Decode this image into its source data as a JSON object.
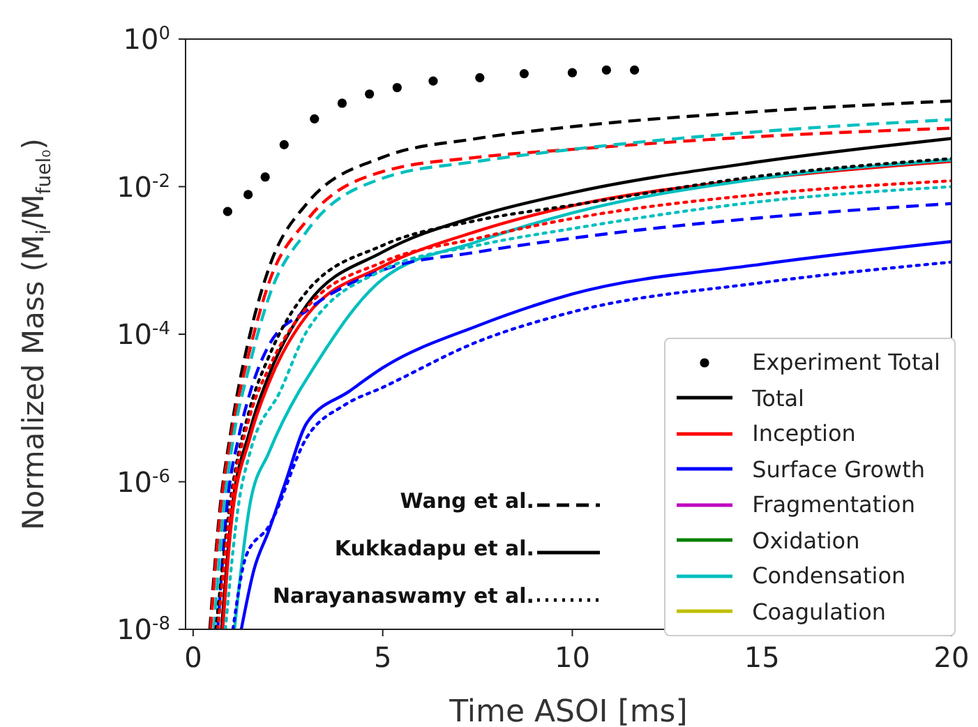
{
  "chart_data": {
    "type": "line",
    "xlabel": "Time ASOI [ms]",
    "ylabel": "Normalized Mass (M$_{i}$/M$_{fuel₀}$)",
    "log": "y",
    "grid": false,
    "legend": "bottom right",
    "xlim": [
      -0.2,
      20
    ],
    "xticks": [
      0,
      5,
      10,
      15,
      20
    ],
    "ylim": [
      1e-08,
      1
    ],
    "yticks": [
      {
        "value": 1e-08,
        "label": "10$^{-8}$"
      },
      {
        "value": 1e-06,
        "label": "10$^{-6}$"
      },
      {
        "value": 0.0001,
        "label": "10$^{-4}$"
      },
      {
        "value": 0.01,
        "label": "10$^{-2}$"
      },
      {
        "value": 1,
        "label": "10$^{0}$"
      }
    ],
    "annotations": [
      "Wang et al.",
      "Kukkadapu et al.",
      "Narayanaswamy et al."
    ],
    "series": [
      {
        "name": "Experiment Total",
        "type": "scatter",
        "marker": "circle",
        "color": "#000000",
        "x": [
          0.91,
          1.45,
          1.9,
          2.4,
          3.2,
          3.93,
          4.65,
          5.38,
          6.33,
          7.56,
          8.73,
          10.0,
          10.9,
          11.64
        ],
        "values": [
          0.0046,
          0.0078,
          0.0135,
          0.037,
          0.083,
          0.135,
          0.18,
          0.22,
          0.27,
          0.3,
          0.34,
          0.35,
          0.38,
          0.38
        ]
      },
      {
        "name": "Total",
        "color": "#000000",
        "line_style": "solid",
        "x": [
          0.75,
          1,
          1.5,
          2,
          3,
          5,
          7.5,
          10,
          15,
          20
        ],
        "values": [
          1e-08,
          3.2e-07,
          5e-06,
          2.8e-05,
          0.00025,
          0.0013,
          0.004,
          0.0083,
          0.022,
          0.045
        ]
      },
      {
        "name": "Inception",
        "color": "#ff0000",
        "line_style": "solid",
        "x": [
          0.78,
          1,
          1.5,
          2,
          3,
          5,
          7.5,
          10,
          15,
          20
        ],
        "values": [
          1e-08,
          2.5e-07,
          4e-06,
          2.2e-05,
          0.00018,
          0.00083,
          0.0025,
          0.0055,
          0.013,
          0.022
        ]
      },
      {
        "name": "Surface Growth",
        "color": "#0000ff",
        "line_style": "solid",
        "x": [
          1.27,
          1.6,
          2,
          2.44,
          3,
          4.13,
          5,
          7.5,
          10,
          15,
          20
        ],
        "values": [
          1e-08,
          6.3e-08,
          2.2e-07,
          1e-06,
          6.3e-06,
          1.7e-05,
          3.5e-05,
          0.00013,
          0.00035,
          0.00089,
          0.0018
        ]
      },
      {
        "name": "Fragmentation",
        "color": "#bf00bf",
        "line_style": "solid"
      },
      {
        "name": "Oxidation",
        "color": "#008000",
        "line_style": "solid"
      },
      {
        "name": "Condensation",
        "color": "#00bfbf",
        "line_style": "solid",
        "x": [
          1.09,
          1.5,
          2,
          2.8,
          3,
          5,
          7.5,
          10,
          15,
          20
        ],
        "values": [
          1e-08,
          5e-07,
          2.5e-06,
          1.7e-05,
          2.5e-05,
          0.00056,
          0.0018,
          0.0044,
          0.013,
          0.023
        ]
      },
      {
        "name": "Coagulation",
        "color": "#bfbf00",
        "line_style": "solid"
      },
      {
        "color": "#000000",
        "line_style": "dashed",
        "x": [
          0.44,
          0.7,
          1,
          1.5,
          2,
          3,
          5,
          7.5,
          10,
          15,
          20
        ],
        "values": [
          1e-08,
          4e-07,
          5e-06,
          0.0001,
          0.00079,
          0.0059,
          0.025,
          0.045,
          0.065,
          0.105,
          0.145
        ]
      },
      {
        "color": "#ff0000",
        "line_style": "dashed",
        "x": [
          0.46,
          0.72,
          1,
          1.5,
          2,
          3,
          5,
          7.5,
          10,
          15,
          20
        ],
        "values": [
          1e-08,
          4e-07,
          4e-06,
          6.3e-05,
          0.0005,
          0.0035,
          0.016,
          0.025,
          0.032,
          0.048,
          0.062
        ]
      },
      {
        "color": "#00bfbf",
        "line_style": "dashed",
        "x": [
          0.55,
          0.8,
          1,
          1.5,
          2,
          3,
          5,
          7.5,
          10,
          15,
          20
        ],
        "values": [
          1e-08,
          4e-07,
          2.5e-06,
          4e-05,
          0.00032,
          0.0025,
          0.013,
          0.022,
          0.032,
          0.056,
          0.081
        ]
      },
      {
        "color": "#0000ff",
        "line_style": "dashed",
        "x": [
          0.65,
          0.9,
          1.2,
          1.5,
          2,
          3,
          5,
          7.5,
          10,
          15,
          20
        ],
        "values": [
          1e-08,
          5e-07,
          4e-06,
          1.6e-05,
          7.1e-05,
          0.00021,
          0.00074,
          0.0013,
          0.002,
          0.0038,
          0.0059
        ]
      },
      {
        "color": "#000000",
        "line_style": "dotted",
        "x": [
          0.6,
          1,
          1.5,
          2,
          3,
          5,
          7.5,
          10,
          15,
          20
        ],
        "values": [
          1e-08,
          6.3e-07,
          1e-05,
          5e-05,
          0.00038,
          0.0016,
          0.0035,
          0.0056,
          0.014,
          0.024
        ]
      },
      {
        "color": "#ff0000",
        "line_style": "dotted",
        "x": [
          0.65,
          1,
          1.5,
          2,
          3,
          5,
          7.5,
          10,
          15,
          20
        ],
        "values": [
          1e-08,
          5e-07,
          7.9e-06,
          3.5e-05,
          0.00023,
          0.00095,
          0.002,
          0.0037,
          0.0079,
          0.012
        ]
      },
      {
        "color": "#00bfbf",
        "line_style": "dotted",
        "x": [
          0.85,
          1.2,
          1.5,
          2.3,
          3,
          5,
          7.5,
          10,
          15,
          20
        ],
        "values": [
          1e-08,
          5e-07,
          2.5e-06,
          1.7e-05,
          0.00011,
          0.00074,
          0.0016,
          0.0027,
          0.0063,
          0.01
        ]
      },
      {
        "color": "#0000ff",
        "line_style": "dotted",
        "x": [
          1.05,
          1.4,
          2,
          3,
          4,
          5,
          7.5,
          10,
          15,
          20
        ],
        "values": [
          1e-08,
          1e-07,
          2.5e-07,
          4e-06,
          1.1e-05,
          1.9e-05,
          7.9e-05,
          0.0002,
          0.0005,
          0.00095
        ]
      }
    ]
  }
}
